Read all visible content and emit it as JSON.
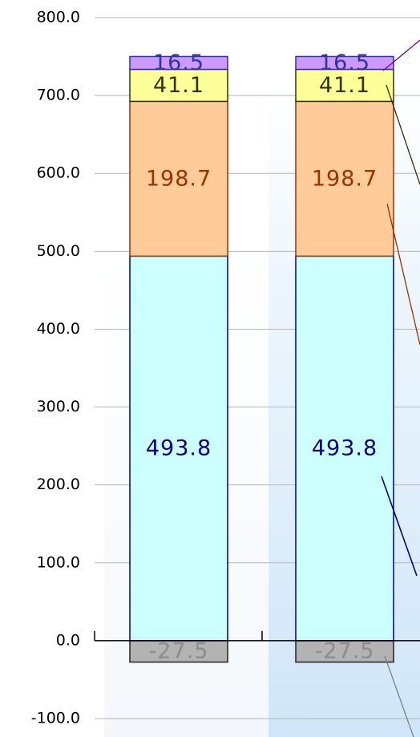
{
  "chart_data": {
    "type": "stacked_bar",
    "categories": [
      null,
      null
    ],
    "series": [
      {
        "color": "#b3b3b3",
        "border": "#222222",
        "label_color": "#8c8c8c",
        "values": [
          -27.5,
          -27.5
        ]
      },
      {
        "color": "#ccffff",
        "border": "#000080",
        "label_color": "#000080",
        "values": [
          493.8,
          493.8
        ]
      },
      {
        "color": "#ffcc99",
        "border": "#993300",
        "label_color": "#993300",
        "values": [
          198.7,
          198.7
        ]
      },
      {
        "color": "#ffff99",
        "border": "#333300",
        "label_color": "#333300",
        "values": [
          41.1,
          41.1
        ]
      },
      {
        "color": "#cc99ff",
        "border": "#333399",
        "label_color": "#333399",
        "values": [
          16.5,
          16.5
        ]
      }
    ],
    "ylim": [
      -100,
      800
    ],
    "yticks": [
      {
        "value": -100,
        "label": "-100.0"
      },
      {
        "value": 0,
        "label": "0.0"
      },
      {
        "value": 100,
        "label": "100.0"
      },
      {
        "value": 200,
        "label": "200.0"
      },
      {
        "value": 300,
        "label": "300.0"
      },
      {
        "value": 400,
        "label": "400.0"
      },
      {
        "value": 500,
        "label": "500.0"
      },
      {
        "value": 600,
        "label": "600.0"
      },
      {
        "value": 700,
        "label": "700.0"
      },
      {
        "value": 800,
        "label": "800.0"
      }
    ],
    "grid": true
  }
}
